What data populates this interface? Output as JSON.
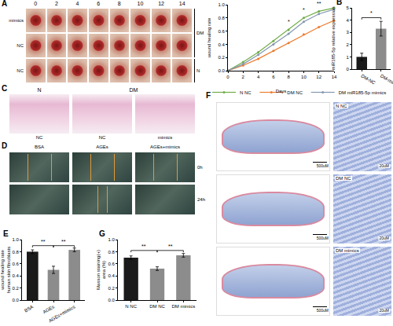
{
  "chart_data": [
    {
      "type": "line",
      "x_label": "Days",
      "y_label": [
        "wound healing rate"
      ],
      "x": [
        0,
        2,
        4,
        6,
        8,
        10,
        12,
        14
      ],
      "series": [
        {
          "name": "N NC",
          "color": "#70ad47",
          "marker": "circle",
          "values": [
            0,
            0.13,
            0.28,
            0.45,
            0.62,
            0.8,
            0.9,
            0.95
          ]
        },
        {
          "name": "DM NC",
          "color": "#ed7d31",
          "marker": "circle",
          "values": [
            0,
            0.08,
            0.18,
            0.3,
            0.42,
            0.55,
            0.66,
            0.76
          ]
        },
        {
          "name": "DM miR185-5p mimics",
          "color": "#8496b0",
          "marker": "circle",
          "values": [
            0,
            0.1,
            0.24,
            0.4,
            0.56,
            0.74,
            0.86,
            0.93
          ]
        }
      ],
      "xlim": [
        0,
        14
      ],
      "xticks": [
        0,
        2,
        4,
        6,
        8,
        10,
        12,
        14
      ],
      "ylim": [
        0,
        1
      ],
      "yticks": [
        {
          "value": 0,
          "label": "0.0"
        },
        0.2,
        0.4,
        0.6,
        0.8,
        {
          "value": 1,
          "label": "1.0"
        }
      ],
      "grid": false,
      "legend": "bottom",
      "annotations": [
        {
          "x": 8,
          "y": 0.68,
          "text": "*"
        },
        {
          "x": 10,
          "y": 0.86,
          "text": "*"
        },
        {
          "x": 12,
          "y": 0.95,
          "text": "**"
        }
      ]
    },
    {
      "panel": "B",
      "type": "bar",
      "y_label": [
        "miR185-5p relative expression"
      ],
      "categories": [
        "DM-NC",
        "DM-mimics"
      ],
      "values": [
        1.0,
        3.3
      ],
      "errors": [
        0.3,
        0.6
      ],
      "colors": [
        "#1a1a1a",
        "#8c8c8c"
      ],
      "ylim": [
        0,
        5
      ],
      "yticks": [
        0,
        1,
        2,
        3,
        4,
        5
      ],
      "grid": false,
      "comparisons": [
        {
          "between": [
            "DM-NC",
            "DM-mimics"
          ],
          "y": 4.2,
          "text": "*"
        }
      ]
    },
    {
      "panel": "E",
      "type": "bar",
      "y_label": [
        "wound healing rate",
        "human skin fibroblasts"
      ],
      "categories": [
        "BSA",
        "AGEs",
        "AGEs+mimics"
      ],
      "values": [
        0.8,
        0.5,
        0.83
      ],
      "errors": [
        0.03,
        0.06,
        0.03
      ],
      "colors": [
        "#1a1a1a",
        "#8c8c8c",
        "#8c8c8c"
      ],
      "ylim": [
        0,
        1
      ],
      "yticks": [
        {
          "value": 0,
          "label": "0.0"
        },
        0.2,
        0.4,
        0.6,
        0.8,
        {
          "value": 1,
          "label": "1.0"
        }
      ],
      "grid": false,
      "comparisons": [
        {
          "between": [
            "BSA",
            "AGEs"
          ],
          "y": 0.9,
          "text": "**"
        },
        {
          "between": [
            "AGEs",
            "AGEs+mimics"
          ],
          "y": 0.9,
          "text": "**"
        }
      ]
    },
    {
      "panel": "G",
      "type": "bar",
      "y_label": [
        "Masson staining(+)",
        "area (%)"
      ],
      "categories": [
        "N NC",
        "DM NC",
        "DM mimics"
      ],
      "values": [
        0.7,
        0.52,
        0.74
      ],
      "errors": [
        0.03,
        0.03,
        0.03
      ],
      "colors": [
        "#1a1a1a",
        "#8c8c8c",
        "#8c8c8c"
      ],
      "ylim": [
        0,
        1
      ],
      "yticks": [
        {
          "value": 0,
          "label": "0.0"
        },
        0.2,
        0.4,
        0.6,
        0.8,
        {
          "value": 1,
          "label": "1.0"
        }
      ],
      "grid": false,
      "comparisons": [
        {
          "between": [
            "N NC",
            "DM NC"
          ],
          "y": 0.82,
          "text": "**"
        },
        {
          "between": [
            "DM NC",
            "DM mimics"
          ],
          "y": 0.82,
          "text": "**"
        }
      ]
    }
  ],
  "images": {
    "A": {
      "panel": "A",
      "columns": [
        "0",
        "2",
        "4",
        "6",
        "8",
        "10",
        "12",
        "14"
      ],
      "rows": [
        "mimics",
        "NC",
        "NC"
      ],
      "side_labels": [
        "DM",
        "N"
      ]
    },
    "C": {
      "panel": "C",
      "headers": [
        "N",
        "DM"
      ],
      "captions": [
        "NC",
        "NC",
        "mimics"
      ]
    },
    "D": {
      "panel": "D",
      "columns": [
        "BSA",
        "AGEs",
        "AGEs+mimics"
      ],
      "rows": [
        "0h",
        "24h"
      ]
    },
    "F": {
      "panel": "F",
      "rows": [
        "N NC",
        "DM NC",
        "DM mimics"
      ],
      "scale_large": "500uM",
      "scale_small": "20uM"
    }
  }
}
